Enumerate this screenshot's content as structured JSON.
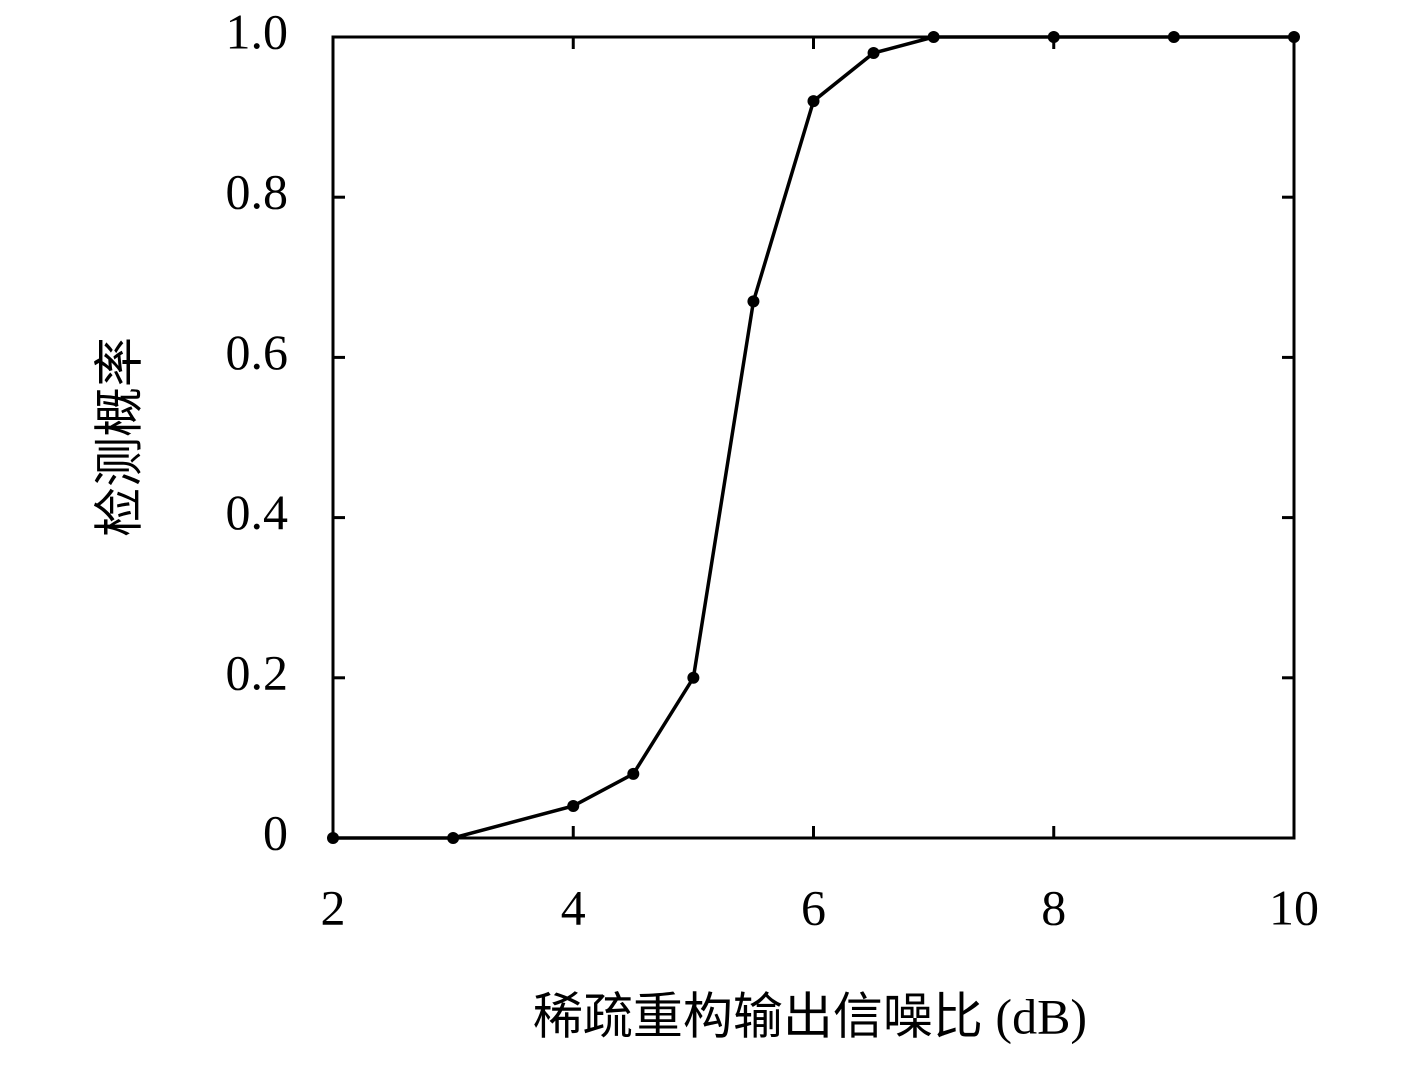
{
  "chart_data": {
    "type": "line",
    "xlabel": "稀疏重构输出信噪比 (dB)",
    "ylabel": "检测概率",
    "x": [
      2,
      3,
      4,
      4.5,
      5,
      5.5,
      6,
      6.5,
      7,
      8,
      9,
      10
    ],
    "values": [
      0,
      0,
      0.04,
      0.08,
      0.2,
      0.67,
      0.92,
      0.98,
      1,
      1,
      1,
      1
    ],
    "color": "#000000",
    "xlim": [
      2,
      10
    ],
    "xticks": [
      2,
      4,
      6,
      8,
      10
    ],
    "ylim": [
      0,
      1
    ],
    "yticks": [
      0,
      0.2,
      0.4,
      0.6,
      0.8,
      {
        "value": 1,
        "label": "1.0"
      }
    ],
    "grid": false
  }
}
